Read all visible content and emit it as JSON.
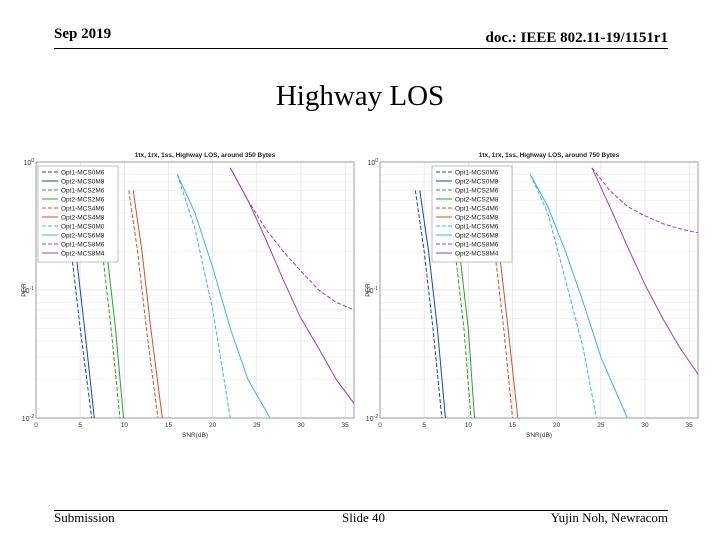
{
  "slide": {
    "date": "Sep 2019",
    "doc": "doc.: IEEE 802.11-19/1151r1",
    "title": "Highway LOS",
    "footer_left": "Submission",
    "footer_center": "Slide 40",
    "footer_right": "Yujin Noh, Newracom"
  },
  "chart_data": [
    {
      "type": "line",
      "title": "1tx, 1rx, 1ss, Highway LOS, around 350 Bytes",
      "xlabel": "SNR(dB)",
      "ylabel": "PER",
      "xlim": [
        0,
        36
      ],
      "ylim": [
        0.01,
        1
      ],
      "yscale": "log",
      "xticks": [
        0,
        5,
        10,
        15,
        20,
        25,
        30,
        35
      ],
      "yticks": [
        {
          "value": 1,
          "label": "10^0"
        },
        {
          "value": 0.1,
          "label": "10^-1"
        },
        {
          "value": 0.01,
          "label": "10^-2"
        }
      ],
      "legend_position": "top-left",
      "series": [
        {
          "name": "Opt1-MCS0M6",
          "color": "#1f3fbf",
          "dash": true,
          "x": [
            3,
            4,
            5,
            6.3
          ],
          "y": [
            0.6,
            0.2,
            0.05,
            0.01
          ]
        },
        {
          "name": "Opt2-MCS0M8",
          "color": "#1f3fbf",
          "dash": false,
          "x": [
            3.5,
            4.5,
            5.5,
            6.6
          ],
          "y": [
            0.6,
            0.2,
            0.05,
            0.01
          ]
        },
        {
          "name": "Opt1-MCS2M6",
          "color": "#2e9e3a",
          "dash": true,
          "x": [
            6.5,
            7.5,
            8.5,
            9.5
          ],
          "y": [
            0.6,
            0.2,
            0.05,
            0.01
          ]
        },
        {
          "name": "Opt2-MCS2M6",
          "color": "#2e9e3a",
          "dash": false,
          "x": [
            7,
            8,
            9,
            9.9
          ],
          "y": [
            0.6,
            0.2,
            0.05,
            0.01
          ]
        },
        {
          "name": "Opt1-MCS4M6",
          "color": "#d94a3a",
          "dash": true,
          "x": [
            10.5,
            11.5,
            12.5,
            13.8
          ],
          "y": [
            0.6,
            0.2,
            0.05,
            0.01
          ]
        },
        {
          "name": "Opt2-MCS4M8",
          "color": "#d94a3a",
          "dash": false,
          "x": [
            11,
            12,
            13,
            14.3
          ],
          "y": [
            0.6,
            0.2,
            0.05,
            0.01
          ]
        },
        {
          "name": "Opt1-MCS0M0",
          "color": "#38bcc8",
          "dash": true,
          "x": [
            16,
            18,
            20,
            22
          ],
          "y": [
            0.8,
            0.3,
            0.07,
            0.01
          ]
        },
        {
          "name": "Opt2-MCS6M8",
          "color": "#38bcc8",
          "dash": false,
          "x": [
            16,
            18,
            20,
            22,
            24,
            26.5
          ],
          "y": [
            0.8,
            0.4,
            0.15,
            0.05,
            0.02,
            0.01
          ]
        },
        {
          "name": "Opt1-MCS8M6",
          "color": "#a040b0",
          "dash": true,
          "x": [
            22,
            24,
            26,
            28,
            30,
            32,
            34,
            36
          ],
          "y": [
            0.9,
            0.5,
            0.3,
            0.2,
            0.14,
            0.1,
            0.08,
            0.07
          ]
        },
        {
          "name": "Opt2-MCS8M4",
          "color": "#a040b0",
          "dash": false,
          "x": [
            22,
            24,
            26,
            28,
            30,
            32,
            34,
            36
          ],
          "y": [
            0.9,
            0.5,
            0.25,
            0.12,
            0.06,
            0.035,
            0.02,
            0.013
          ]
        }
      ]
    },
    {
      "type": "line",
      "title": "1tx, 1rx, 1ss, Highway LOS, around 750 Bytes",
      "xlabel": "SNR(dB)",
      "ylabel": "PER",
      "xlim": [
        0,
        36
      ],
      "ylim": [
        0.01,
        1
      ],
      "yscale": "log",
      "xticks": [
        0,
        5,
        10,
        15,
        20,
        25,
        30,
        35
      ],
      "yticks": [
        {
          "value": 1,
          "label": "10^0"
        },
        {
          "value": 0.1,
          "label": "10^-1"
        },
        {
          "value": 0.01,
          "label": "10^-2"
        }
      ],
      "legend_position": "top-right",
      "series": [
        {
          "name": "Opt1-MCS0M6",
          "color": "#1f3fbf",
          "dash": true,
          "x": [
            4,
            5,
            6,
            7
          ],
          "y": [
            0.6,
            0.2,
            0.05,
            0.01
          ]
        },
        {
          "name": "Opt2-MCS0M8",
          "color": "#1f3fbf",
          "dash": false,
          "x": [
            4.5,
            5.5,
            6.5,
            7.4
          ],
          "y": [
            0.6,
            0.2,
            0.05,
            0.01
          ]
        },
        {
          "name": "Opt1-MCS2M6",
          "color": "#2e9e3a",
          "dash": true,
          "x": [
            7.5,
            8.5,
            9.5,
            10.3
          ],
          "y": [
            0.6,
            0.2,
            0.05,
            0.01
          ]
        },
        {
          "name": "Opt2-MCS2M8",
          "color": "#2e9e3a",
          "dash": false,
          "x": [
            8,
            9,
            10,
            10.7
          ],
          "y": [
            0.6,
            0.2,
            0.05,
            0.01
          ]
        },
        {
          "name": "Opt1-MCS4M6",
          "color": "#d94a3a",
          "dash": true,
          "x": [
            12,
            13,
            14,
            15
          ],
          "y": [
            0.6,
            0.2,
            0.05,
            0.01
          ]
        },
        {
          "name": "Opt2-MCS4M8",
          "color": "#d94a3a",
          "dash": false,
          "x": [
            12.5,
            13.5,
            14.5,
            15.6
          ],
          "y": [
            0.6,
            0.2,
            0.05,
            0.01
          ]
        },
        {
          "name": "Opt1-MCS6M6",
          "color": "#38bcc8",
          "dash": true,
          "x": [
            17,
            19,
            21,
            23,
            24.5
          ],
          "y": [
            0.8,
            0.4,
            0.12,
            0.035,
            0.01
          ]
        },
        {
          "name": "Opt2-MCS6M8",
          "color": "#38bcc8",
          "dash": false,
          "x": [
            17,
            19,
            21,
            23,
            25,
            28
          ],
          "y": [
            0.8,
            0.45,
            0.2,
            0.08,
            0.03,
            0.01
          ]
        },
        {
          "name": "Opt1-MCS8M6",
          "color": "#a040b0",
          "dash": true,
          "x": [
            24,
            26,
            28,
            30,
            32,
            34,
            36
          ],
          "y": [
            0.9,
            0.6,
            0.45,
            0.38,
            0.33,
            0.3,
            0.28
          ]
        },
        {
          "name": "Opt2-MCS8M4",
          "color": "#a040b0",
          "dash": false,
          "x": [
            24,
            26,
            28,
            30,
            32,
            34,
            36
          ],
          "y": [
            0.9,
            0.45,
            0.22,
            0.11,
            0.06,
            0.035,
            0.022
          ]
        }
      ]
    }
  ]
}
